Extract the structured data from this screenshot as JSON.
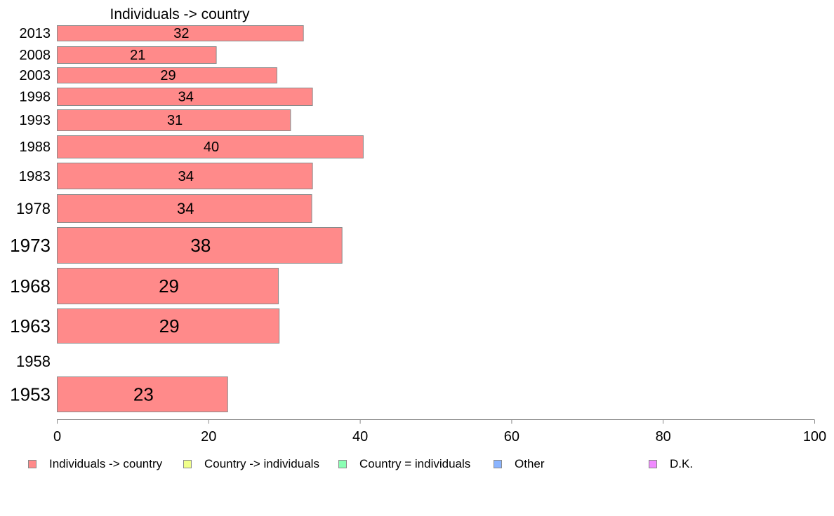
{
  "chart_data": {
    "type": "bar",
    "orientation": "horizontal",
    "title": "Individuals -> country",
    "categories": [
      "2013",
      "2008",
      "2003",
      "1998",
      "1993",
      "1988",
      "1983",
      "1978",
      "1973",
      "1968",
      "1963",
      "1958",
      "1953"
    ],
    "series": [
      {
        "name": "Individuals -> country",
        "color": "#ff8a8a",
        "values": [
          32.5,
          21,
          29,
          33.7,
          30.8,
          40.4,
          33.7,
          33.6,
          37.6,
          29.2,
          29.3,
          null,
          22.5
        ],
        "labels": [
          "32",
          "21",
          "29",
          "34",
          "31",
          "40",
          "34",
          "34",
          "38",
          "29",
          "29",
          "",
          "23"
        ]
      }
    ],
    "xlim": [
      0,
      100
    ],
    "xticks": [
      "0",
      "20",
      "40",
      "60",
      "80",
      "100"
    ],
    "grid": false,
    "legend_position": "bottom"
  },
  "legend": {
    "items": [
      {
        "label": "Individuals -> country",
        "color": "#ff8a8a"
      },
      {
        "label": "Country -> individuals",
        "color": "#f0ff8a"
      },
      {
        "label": "Country = individuals",
        "color": "#8affb4"
      },
      {
        "label": "Other",
        "color": "#8ab4ff"
      },
      {
        "label": "D.K.",
        "color": "#f08aff"
      }
    ]
  }
}
